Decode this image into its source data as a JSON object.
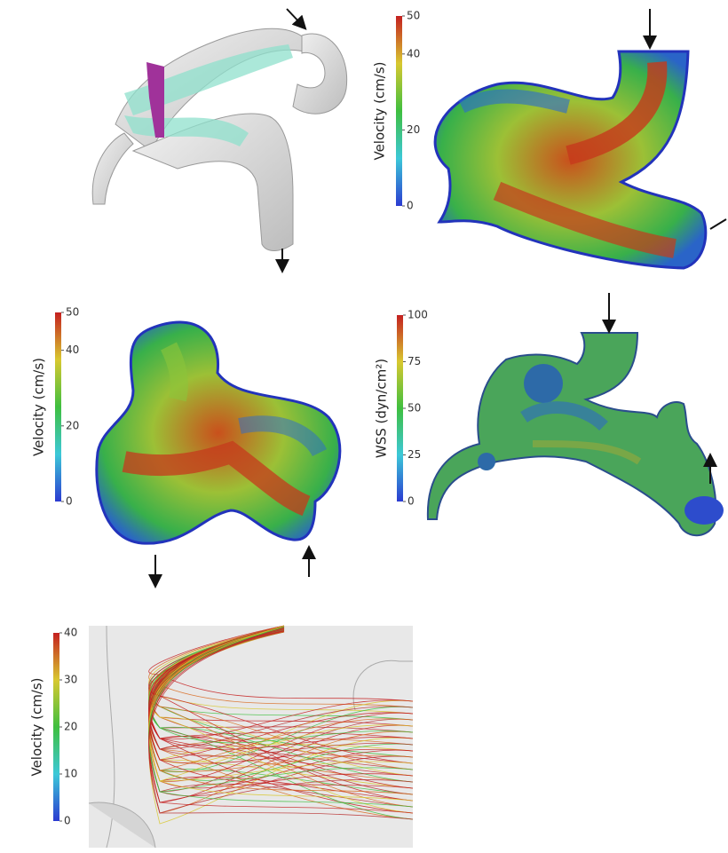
{
  "figure": {
    "colorbars": [
      {
        "label": "Velocity (cm/s)",
        "ticks": [
          0,
          20,
          40,
          50
        ]
      },
      {
        "label": "Velocity (cm/s)",
        "ticks": [
          0,
          20,
          40,
          50
        ]
      },
      {
        "label": "WSS (dyn/cm²)",
        "ticks": [
          0,
          25,
          50,
          75,
          100
        ]
      },
      {
        "label": "Velocity (cm/s)",
        "ticks": [
          0,
          10,
          20,
          30,
          40
        ]
      }
    ]
  }
}
